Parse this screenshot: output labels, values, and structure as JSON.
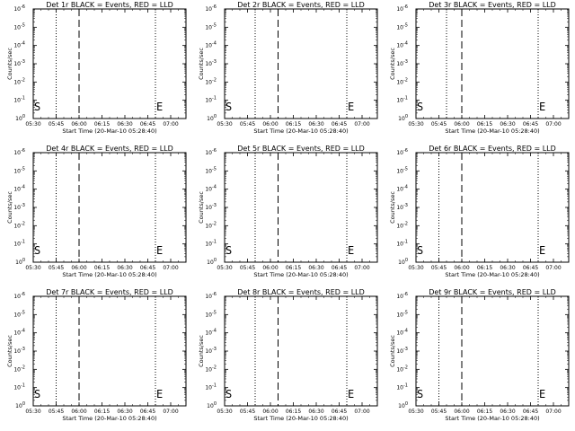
{
  "figure": {
    "x_axis_title": "Start Time (20-Mar-10 05:28:40)",
    "y_axis_title": "Counts/sec",
    "x_tick_labels": [
      "05:30",
      "05:45",
      "06:00",
      "06:15",
      "06:30",
      "06:45",
      "07:00"
    ],
    "y_tick_labels": [
      {
        "mantissa": "10",
        "exp": "0"
      },
      {
        "mantissa": "10",
        "exp": "-1"
      },
      {
        "mantissa": "10",
        "exp": "-2"
      },
      {
        "mantissa": "10",
        "exp": "-3"
      },
      {
        "mantissa": "10",
        "exp": "-4"
      },
      {
        "mantissa": "10",
        "exp": "-5"
      },
      {
        "mantissa": "10",
        "exp": "-6"
      }
    ],
    "colors": {
      "events": "#000000",
      "lld": "#ff0000",
      "background": "#ffffff"
    }
  },
  "chart_data": [
    {
      "type": "line",
      "title": "Det 1r BLACK = Events, RED = LLD",
      "xlabel": "Start Time (20-Mar-10 05:28:40)",
      "ylabel": "Counts/sec",
      "y_scale": "log",
      "ylim_exponents": [
        0,
        -6
      ],
      "xlim": [
        "05:30",
        "07:10"
      ],
      "dotted_lines": [
        "05:45",
        "06:50"
      ],
      "dashed_lines": [
        "06:00"
      ],
      "markers": [
        {
          "label": "S",
          "time": "05:30"
        },
        {
          "label": "E",
          "time": "06:50"
        }
      ]
    },
    {
      "type": "line",
      "title": "Det 2r BLACK = Events, RED = LLD",
      "xlabel": "Start Time (20-Mar-10 05:28:40)",
      "ylabel": "Counts/sec",
      "y_scale": "log",
      "ylim_exponents": [
        0,
        -6
      ],
      "xlim": [
        "05:30",
        "07:10"
      ],
      "dotted_lines": [
        "05:50",
        "06:50"
      ],
      "dashed_lines": [
        "06:05"
      ],
      "markers": [
        {
          "label": "S",
          "time": "05:30"
        },
        {
          "label": "E",
          "time": "06:50"
        }
      ]
    },
    {
      "type": "line",
      "title": "Det 3r BLACK = Events, RED = LLD",
      "xlabel": "Start Time (20-Mar-10 05:28:40)",
      "ylabel": "Counts/sec",
      "y_scale": "log",
      "ylim_exponents": [
        0,
        -6
      ],
      "xlim": [
        "05:30",
        "07:10"
      ],
      "dotted_lines": [
        "05:50",
        "06:50"
      ],
      "dashed_lines": [
        "06:00"
      ],
      "markers": [
        {
          "label": "S",
          "time": "05:30"
        },
        {
          "label": "E",
          "time": "06:50"
        }
      ]
    },
    {
      "type": "line",
      "title": "Det 4r BLACK = Events, RED = LLD",
      "xlabel": "Start Time (20-Mar-10 05:28:40)",
      "ylabel": "Counts/sec",
      "y_scale": "log",
      "ylim_exponents": [
        0,
        -6
      ],
      "xlim": [
        "05:30",
        "07:10"
      ],
      "dotted_lines": [
        "05:45",
        "06:50"
      ],
      "dashed_lines": [
        "06:00"
      ],
      "markers": [
        {
          "label": "S",
          "time": "05:30"
        },
        {
          "label": "E",
          "time": "06:50"
        }
      ]
    },
    {
      "type": "line",
      "title": "Det 5r BLACK = Events, RED = LLD",
      "xlabel": "Start Time (20-Mar-10 05:28:40)",
      "ylabel": "Counts/sec",
      "y_scale": "log",
      "ylim_exponents": [
        0,
        -6
      ],
      "xlim": [
        "05:30",
        "07:10"
      ],
      "dotted_lines": [
        "05:50",
        "06:50"
      ],
      "dashed_lines": [
        "06:05"
      ],
      "markers": [
        {
          "label": "S",
          "time": "05:30"
        },
        {
          "label": "E",
          "time": "06:50"
        }
      ]
    },
    {
      "type": "line",
      "title": "Det 6r BLACK = Events, RED = LLD",
      "xlabel": "Start Time (20-Mar-10 05:28:40)",
      "ylabel": "Counts/sec",
      "y_scale": "log",
      "ylim_exponents": [
        0,
        -6
      ],
      "xlim": [
        "05:30",
        "07:10"
      ],
      "dotted_lines": [
        "05:45",
        "06:50"
      ],
      "dashed_lines": [
        "06:00"
      ],
      "markers": [
        {
          "label": "S",
          "time": "05:30"
        },
        {
          "label": "E",
          "time": "06:50"
        }
      ]
    },
    {
      "type": "line",
      "title": "Det 7r BLACK = Events, RED = LLD",
      "xlabel": "Start Time (20-Mar-10 05:28:40)",
      "ylabel": "Counts/sec",
      "y_scale": "log",
      "ylim_exponents": [
        0,
        -6
      ],
      "xlim": [
        "05:30",
        "07:10"
      ],
      "dotted_lines": [
        "05:45",
        "06:50"
      ],
      "dashed_lines": [
        "06:00"
      ],
      "markers": [
        {
          "label": "S",
          "time": "05:30"
        },
        {
          "label": "E",
          "time": "06:50"
        }
      ]
    },
    {
      "type": "line",
      "title": "Det 8r BLACK = Events, RED = LLD",
      "xlabel": "Start Time (20-Mar-10 05:28:40)",
      "ylabel": "Counts/sec",
      "y_scale": "log",
      "ylim_exponents": [
        0,
        -6
      ],
      "xlim": [
        "05:30",
        "07:10"
      ],
      "dotted_lines": [
        "05:50",
        "06:50"
      ],
      "dashed_lines": [
        "06:05"
      ],
      "markers": [
        {
          "label": "S",
          "time": "05:30"
        },
        {
          "label": "E",
          "time": "06:50"
        }
      ]
    },
    {
      "type": "line",
      "title": "Det 9r BLACK = Events, RED = LLD",
      "xlabel": "Start Time (20-Mar-10 05:28:40)",
      "ylabel": "Counts/sec",
      "y_scale": "log",
      "ylim_exponents": [
        0,
        -6
      ],
      "xlim": [
        "05:30",
        "07:10"
      ],
      "dotted_lines": [
        "05:45",
        "06:50"
      ],
      "dashed_lines": [
        "06:00"
      ],
      "markers": [
        {
          "label": "S",
          "time": "05:30"
        },
        {
          "label": "E",
          "time": "06:50"
        }
      ]
    }
  ]
}
